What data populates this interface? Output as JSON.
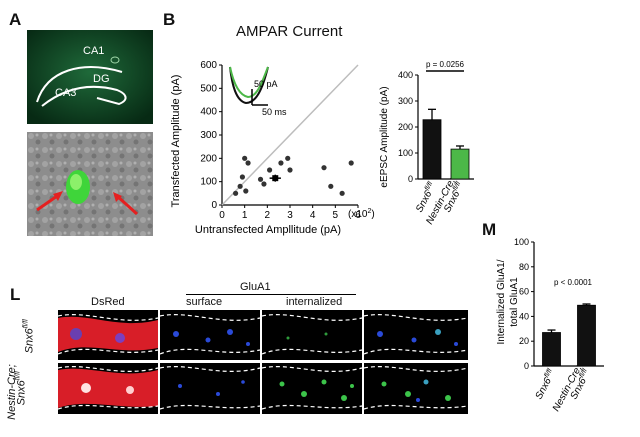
{
  "panels": {
    "A": {
      "letter": "A",
      "labels": [
        "CA1",
        "DG",
        "CA3"
      ]
    },
    "B": {
      "letter": "B",
      "title": "AMPAR Current",
      "scale_bar": {
        "y": "50 pA",
        "x": "50 ms"
      }
    },
    "L": {
      "letter": "L",
      "col_dsred": "DsRed",
      "glua1_header": "GluA1",
      "col_surface": "surface",
      "col_internalized": "internalized",
      "row1": {
        "name": "Snx6",
        "sup": "fl/fl"
      },
      "row2": {
        "line1": "Nestin-Cre;",
        "name": "Snx6",
        "sup": "fl/fl"
      }
    },
    "M": {
      "letter": "M"
    }
  },
  "chart_data": [
    {
      "type": "scatter",
      "xlabel": "Untransfected Ampllitude (pA)",
      "ylabel": "Transfected Amplitude (pA)",
      "x_multiplier_label": "(x10",
      "x_multiplier_exp": "2",
      "x_multiplier_close": ")",
      "xlim": [
        0,
        6
      ],
      "ylim": [
        0,
        600
      ],
      "xticks": [
        "0",
        "1",
        "2",
        "3",
        "4",
        "5",
        "6"
      ],
      "yticks": [
        "0",
        "100",
        "200",
        "300",
        "400",
        "500",
        "600"
      ],
      "unity_line": true,
      "points": [
        {
          "x": 0.6,
          "y": 50
        },
        {
          "x": 0.8,
          "y": 80
        },
        {
          "x": 0.9,
          "y": 120
        },
        {
          "x": 1.0,
          "y": 200
        },
        {
          "x": 1.05,
          "y": 60
        },
        {
          "x": 1.15,
          "y": 180
        },
        {
          "x": 1.7,
          "y": 110
        },
        {
          "x": 1.85,
          "y": 90
        },
        {
          "x": 2.1,
          "y": 150
        },
        {
          "x": 2.6,
          "y": 180
        },
        {
          "x": 2.9,
          "y": 200
        },
        {
          "x": 3.0,
          "y": 150
        },
        {
          "x": 4.5,
          "y": 160
        },
        {
          "x": 4.8,
          "y": 80
        },
        {
          "x": 5.3,
          "y": 50
        },
        {
          "x": 5.7,
          "y": 180
        }
      ],
      "mean": {
        "x": 2.35,
        "y": 115,
        "xerr": 0.25,
        "yerr": 15
      }
    },
    {
      "type": "bar",
      "ylabel": "eEPSC Amplitude (pA)",
      "ylim": [
        0,
        400
      ],
      "yticks": [
        "0",
        "100",
        "200",
        "300",
        "400"
      ],
      "significance": "p = 0.0256",
      "categories": [
        {
          "line1": "",
          "name": "Snx6",
          "sup": "fl/fl"
        },
        {
          "line1": "Nestin-Cre;",
          "name": "Snx6",
          "sup": "fl/fl"
        }
      ],
      "values": [
        228,
        115
      ],
      "errors": [
        40,
        12
      ],
      "colors": [
        "#111111",
        "#4cb848"
      ]
    },
    {
      "type": "bar",
      "ylabel_line1": "Internalized GluA1/",
      "ylabel_line2": "total GluA1",
      "ylim": [
        0,
        100
      ],
      "yticks": [
        "0",
        "20",
        "40",
        "60",
        "80",
        "100"
      ],
      "significance": "p < 0.0001",
      "categories": [
        {
          "line1": "",
          "name": "Snx6",
          "sup": "fl/fl"
        },
        {
          "line1": "Nestin-Cre;",
          "name": "Snx6",
          "sup": "fl/fl"
        }
      ],
      "values": [
        27,
        49
      ],
      "errors": [
        2,
        1
      ],
      "colors": [
        "#111111",
        "#111111"
      ]
    }
  ]
}
